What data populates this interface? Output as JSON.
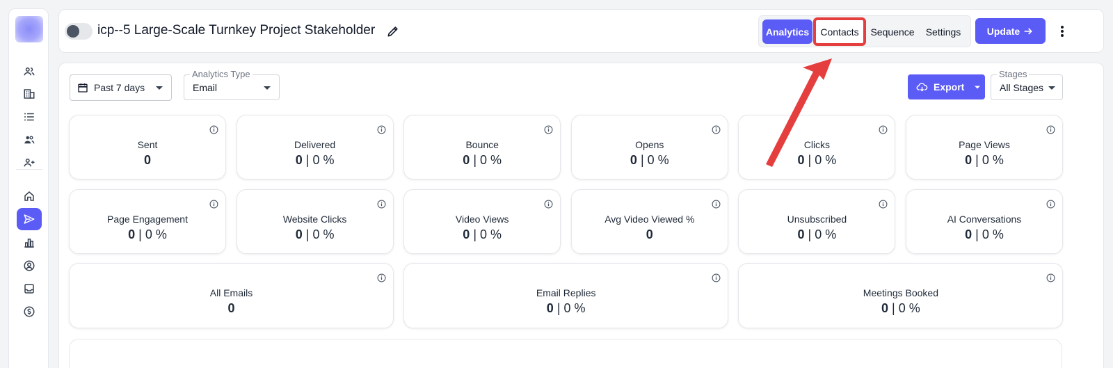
{
  "header": {
    "title": "icp--5 Large-Scale Turnkey Project Stakeholder",
    "tabs": [
      {
        "label": "Analytics"
      },
      {
        "label": "Contacts"
      },
      {
        "label": "Sequence"
      },
      {
        "label": "Settings"
      }
    ],
    "update_label": "Update"
  },
  "filters": {
    "date_range": "Past 7 days",
    "analytics_type_label": "Analytics Type",
    "analytics_type_value": "Email",
    "export_label": "Export",
    "stages_label": "Stages",
    "stages_value": "All Stages"
  },
  "metrics": [
    {
      "label": "Sent",
      "count": "0",
      "pct": ""
    },
    {
      "label": "Delivered",
      "count": "0",
      "pct": "0 %"
    },
    {
      "label": "Bounce",
      "count": "0",
      "pct": "0 %"
    },
    {
      "label": "Opens",
      "count": "0",
      "pct": "0 %"
    },
    {
      "label": "Clicks",
      "count": "0",
      "pct": "0 %"
    },
    {
      "label": "Page Views",
      "count": "0",
      "pct": "0 %"
    },
    {
      "label": "Page Engagement",
      "count": "0",
      "pct": "0 %"
    },
    {
      "label": "Website Clicks",
      "count": "0",
      "pct": "0 %"
    },
    {
      "label": "Video Views",
      "count": "0",
      "pct": "0 %"
    },
    {
      "label": "Avg Video Viewed %",
      "count": "0",
      "pct": ""
    },
    {
      "label": "Unsubscribed",
      "count": "0",
      "pct": "0 %"
    },
    {
      "label": "AI Conversations",
      "count": "0",
      "pct": "0 %"
    },
    {
      "label": "All Emails",
      "count": "0",
      "pct": ""
    },
    {
      "label": "Email Replies",
      "count": "0",
      "pct": "0 %"
    },
    {
      "label": "Meetings Booked",
      "count": "0",
      "pct": "0 %"
    }
  ],
  "colors": {
    "accent": "#5b5bf6",
    "annotation": "#e53e3e"
  }
}
